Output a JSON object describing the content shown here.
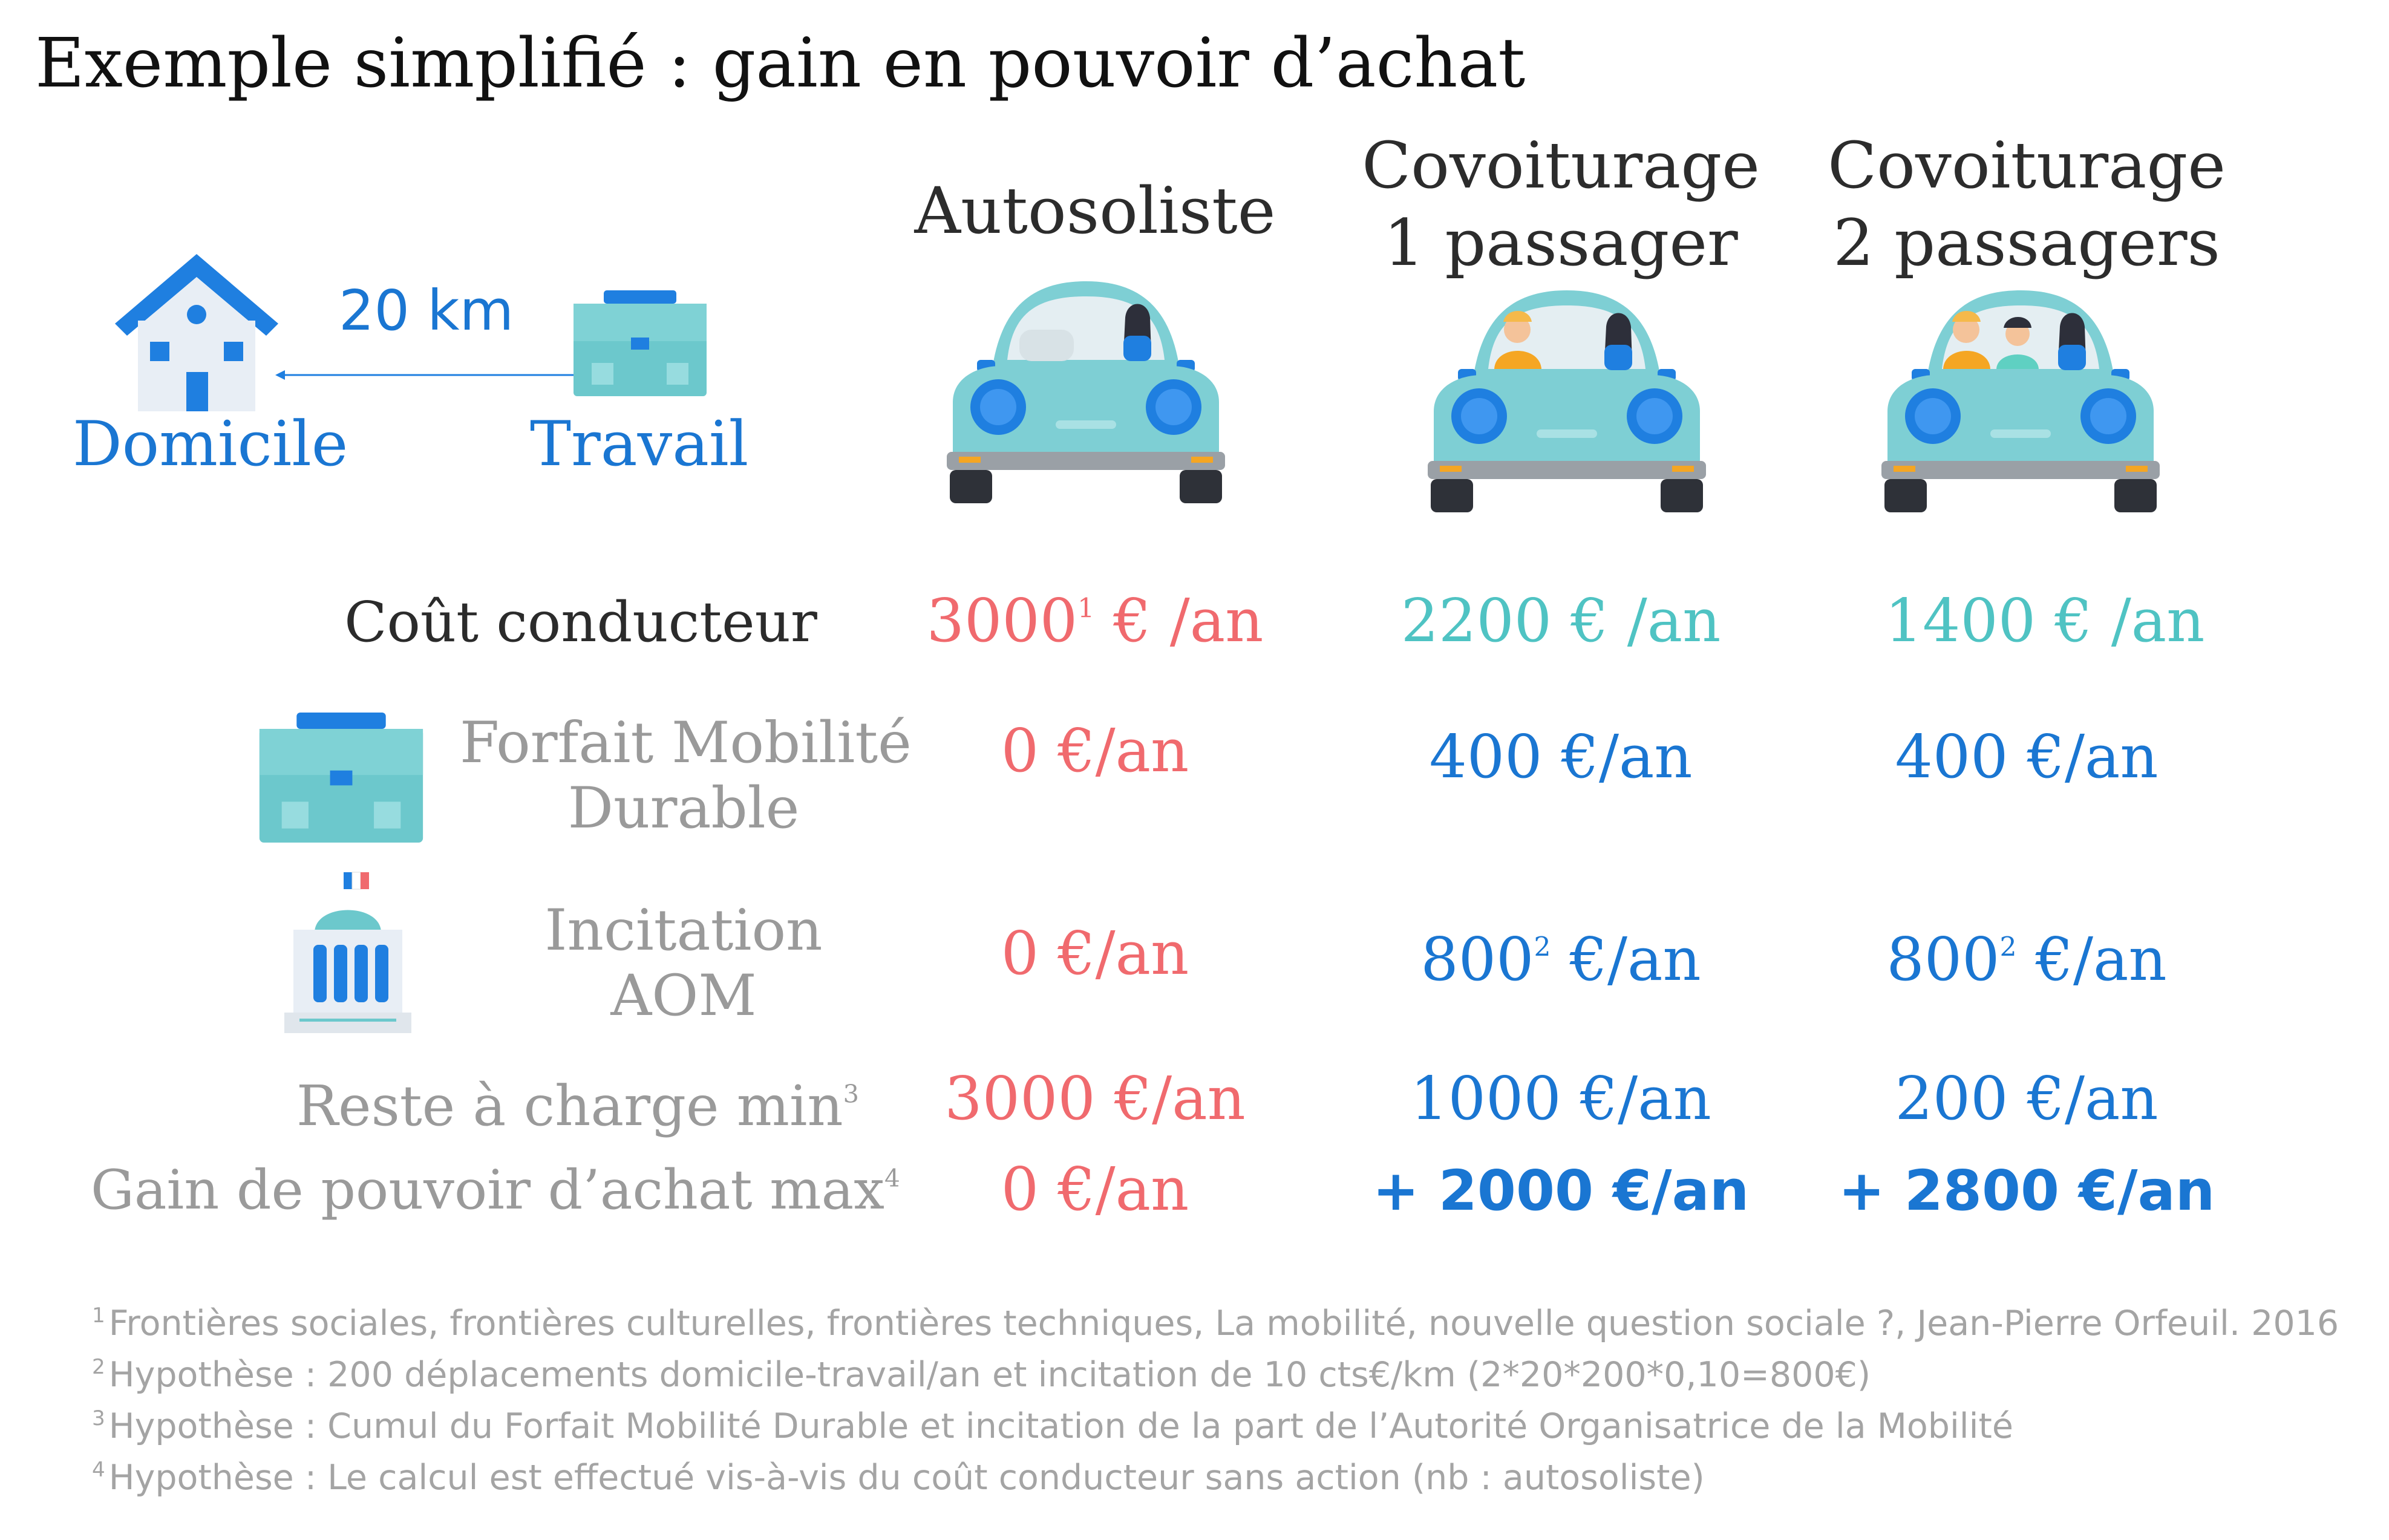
{
  "title": "Exemple simplifié : gain en pouvoir d’achat",
  "trip": {
    "distance": "20 km",
    "home_label": "Domicile",
    "work_label": "Travail"
  },
  "columns": [
    {
      "line1": "Autosoliste",
      "line2": ""
    },
    {
      "line1": "Covoiturage",
      "line2": "1 passager"
    },
    {
      "line1": "Covoiturage",
      "line2": "2 passagers"
    }
  ],
  "rows": {
    "cout": {
      "label": "Coût conducteur",
      "values": [
        {
          "main": "3000",
          "sup": "1",
          "tail": " € /an"
        },
        {
          "main": "2200 € /an"
        },
        {
          "main": "1400 € /an"
        }
      ]
    },
    "forfait": {
      "label_line1": "Forfait Mobilité",
      "label_line2": "Durable",
      "values": [
        "0 €/an",
        "400 €/an",
        "400 €/an"
      ]
    },
    "incitation": {
      "label_line1": "Incitation",
      "label_line2": "AOM",
      "values": [
        {
          "main": "0 €/an"
        },
        {
          "main": "800",
          "sup": "2",
          "tail": " €/an"
        },
        {
          "main": "800",
          "sup": "2",
          "tail": " €/an"
        }
      ]
    },
    "reste": {
      "label": "Reste à charge min",
      "label_sup": "3",
      "values": [
        "3000 €/an",
        "1000 €/an",
        "200 €/an"
      ]
    },
    "gain": {
      "label": "Gain de pouvoir d’achat max",
      "label_sup": "4",
      "values": [
        "0 €/an",
        "+ 2000 €/an",
        "+ 2800 €/an"
      ]
    }
  },
  "footnotes": [
    {
      "num": "1",
      "text": "Frontières sociales, frontières culturelles, frontières techniques, La mobilité, nouvelle question sociale ?, Jean-Pierre Orfeuil. 2016"
    },
    {
      "num": "2",
      "text": "Hypothèse : 200 déplacements domicile-travail/an et incitation de 10 cts€/km (2*20*200*0,10=800€)"
    },
    {
      "num": "3",
      "text": "Hypothèse : Cumul du Forfait Mobilité Durable et incitation de la part de l’Autorité Organisatrice de la Mobilité"
    },
    {
      "num": "4",
      "text": "Hypothèse : Le calcul est effectué vis-à-vis du coût conducteur sans action (nb : autosoliste)"
    }
  ],
  "colors": {
    "blue": "#1a76d2",
    "red": "#f06a6e",
    "teal": "#4fc3c3",
    "grey": "#9a9a9a",
    "car_body": "#7ecfd4",
    "briefcase": "#6cc8cc"
  },
  "icons": [
    "house-icon",
    "briefcase-icon",
    "car-icon",
    "town-hall-icon"
  ]
}
